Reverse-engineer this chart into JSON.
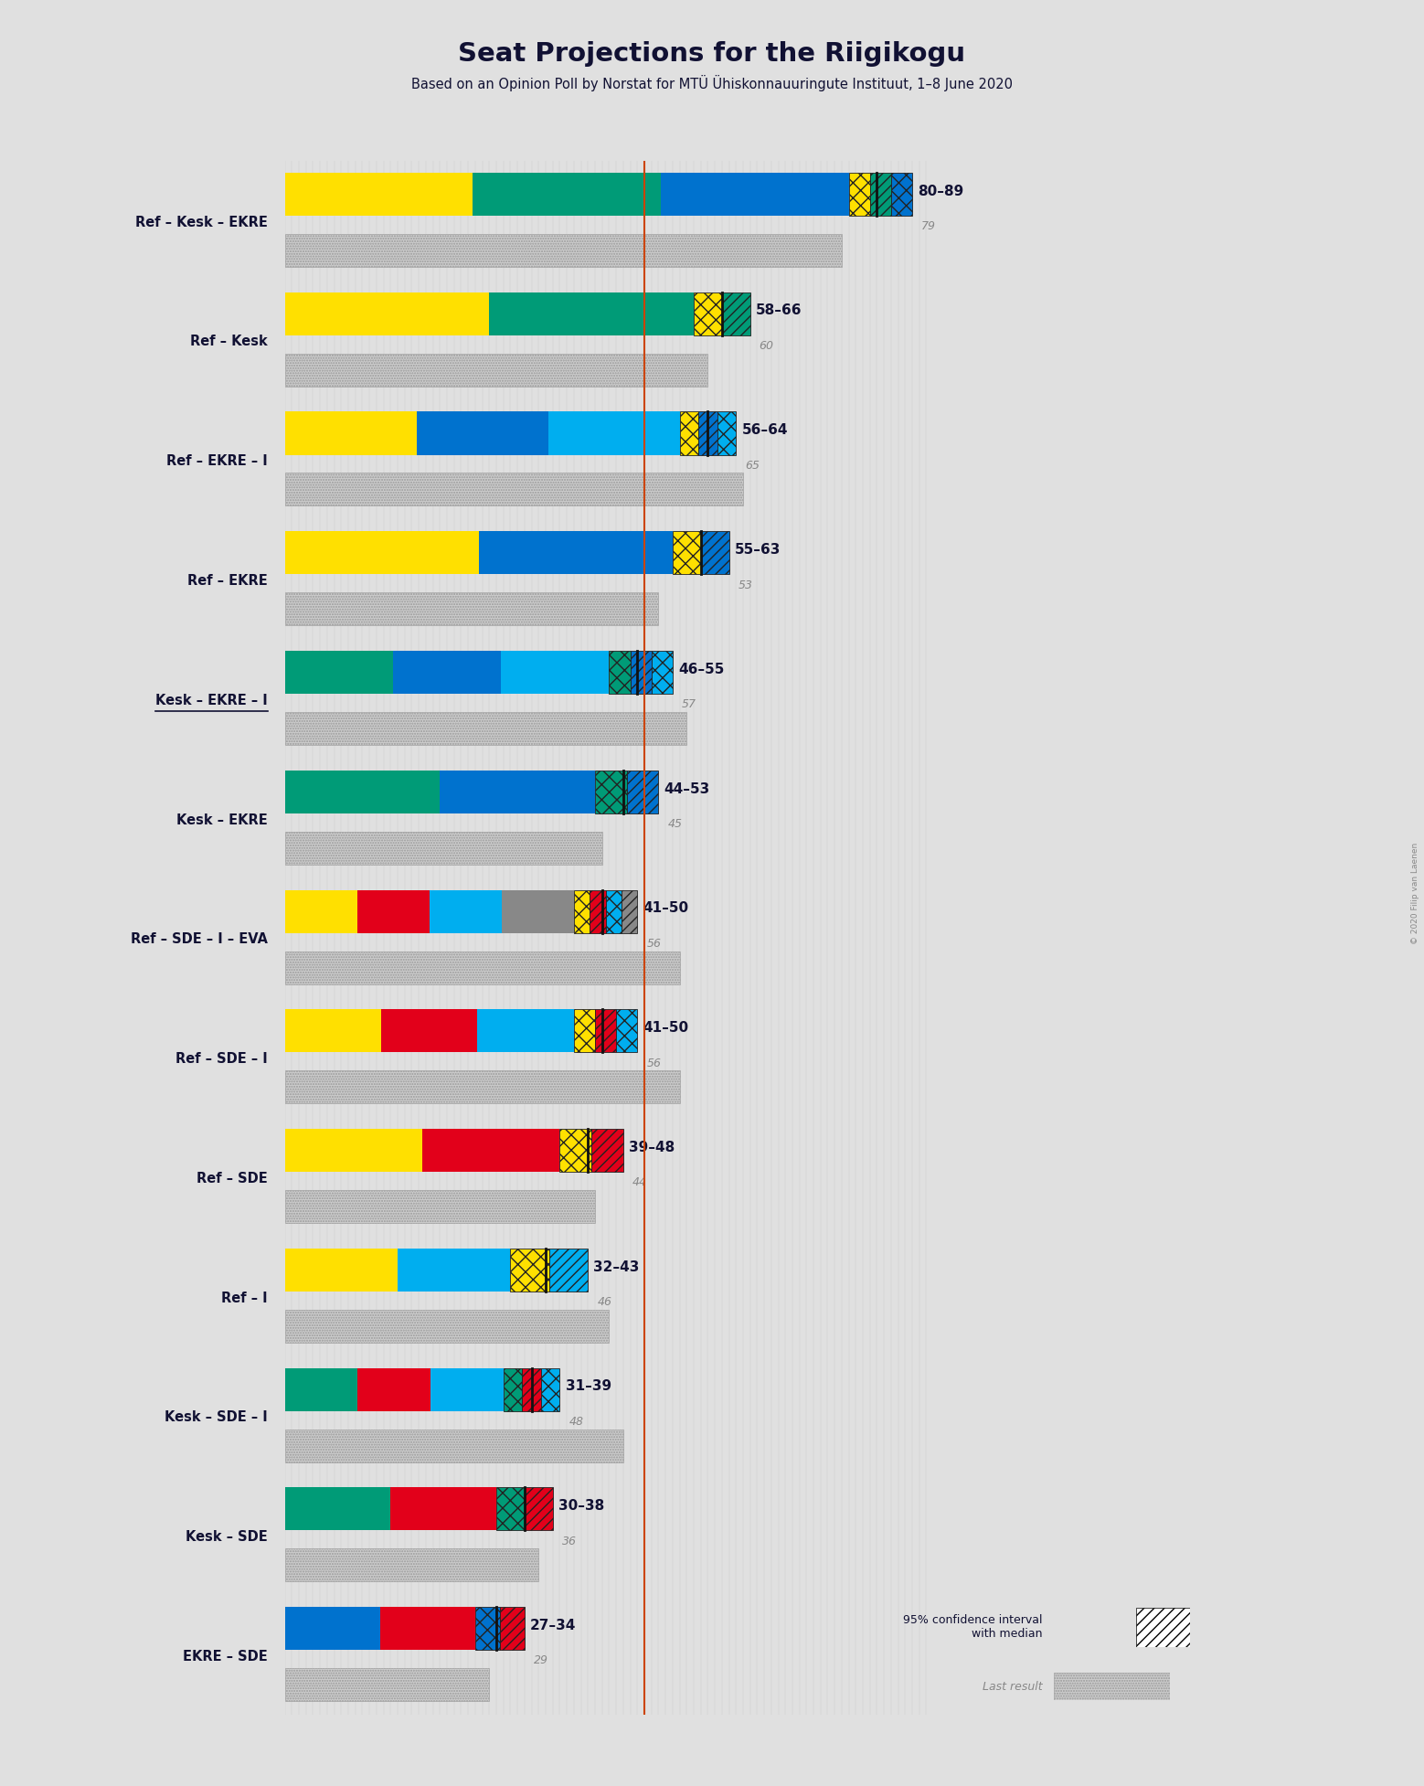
{
  "title": "Seat Projections for the Riigikogu",
  "subtitle": "Based on an Opinion Poll by Norstat for MTÜ Ühiskonnauuringute Instituut, 1–8 June 2020",
  "bg_color": "#e0e0e0",
  "majority_line": 51,
  "majority_line_color": "#cc4400",
  "coalitions": [
    {
      "label": "Ref – Kesk – EKRE",
      "underline": false,
      "ci_low": 80,
      "ci_high": 89,
      "median": 84,
      "last_result": 79,
      "colors": [
        "#FFE000",
        "#009B77",
        "#0072CE"
      ],
      "range_label": "80–89",
      "median_label": "79"
    },
    {
      "label": "Ref – Kesk",
      "underline": false,
      "ci_low": 58,
      "ci_high": 66,
      "median": 62,
      "last_result": 60,
      "colors": [
        "#FFE000",
        "#009B77"
      ],
      "range_label": "58–66",
      "median_label": "60"
    },
    {
      "label": "Ref – EKRE – I",
      "underline": false,
      "ci_low": 56,
      "ci_high": 64,
      "median": 60,
      "last_result": 65,
      "colors": [
        "#FFE000",
        "#0072CE",
        "#00AEEF"
      ],
      "range_label": "56–64",
      "median_label": "65"
    },
    {
      "label": "Ref – EKRE",
      "underline": false,
      "ci_low": 55,
      "ci_high": 63,
      "median": 59,
      "last_result": 53,
      "colors": [
        "#FFE000",
        "#0072CE"
      ],
      "range_label": "55–63",
      "median_label": "53"
    },
    {
      "label": "Kesk – EKRE – I",
      "underline": true,
      "ci_low": 46,
      "ci_high": 55,
      "median": 50,
      "last_result": 57,
      "colors": [
        "#009B77",
        "#0072CE",
        "#00AEEF"
      ],
      "range_label": "46–55",
      "median_label": "57"
    },
    {
      "label": "Kesk – EKRE",
      "underline": false,
      "ci_low": 44,
      "ci_high": 53,
      "median": 48,
      "last_result": 45,
      "colors": [
        "#009B77",
        "#0072CE"
      ],
      "range_label": "44–53",
      "median_label": "45"
    },
    {
      "label": "Ref – SDE – I – EVA",
      "underline": false,
      "ci_low": 41,
      "ci_high": 50,
      "median": 45,
      "last_result": 56,
      "colors": [
        "#FFE000",
        "#E2001A",
        "#00AEEF",
        "#888888"
      ],
      "range_label": "41–50",
      "median_label": "56"
    },
    {
      "label": "Ref – SDE – I",
      "underline": false,
      "ci_low": 41,
      "ci_high": 50,
      "median": 45,
      "last_result": 56,
      "colors": [
        "#FFE000",
        "#E2001A",
        "#00AEEF"
      ],
      "range_label": "41–50",
      "median_label": "56"
    },
    {
      "label": "Ref – SDE",
      "underline": false,
      "ci_low": 39,
      "ci_high": 48,
      "median": 43,
      "last_result": 44,
      "colors": [
        "#FFE000",
        "#E2001A"
      ],
      "range_label": "39–48",
      "median_label": "44"
    },
    {
      "label": "Ref – I",
      "underline": false,
      "ci_low": 32,
      "ci_high": 43,
      "median": 37,
      "last_result": 46,
      "colors": [
        "#FFE000",
        "#00AEEF"
      ],
      "range_label": "32–43",
      "median_label": "46"
    },
    {
      "label": "Kesk – SDE – I",
      "underline": false,
      "ci_low": 31,
      "ci_high": 39,
      "median": 35,
      "last_result": 48,
      "colors": [
        "#009B77",
        "#E2001A",
        "#00AEEF"
      ],
      "range_label": "31–39",
      "median_label": "48"
    },
    {
      "label": "Kesk – SDE",
      "underline": false,
      "ci_low": 30,
      "ci_high": 38,
      "median": 34,
      "last_result": 36,
      "colors": [
        "#009B77",
        "#E2001A"
      ],
      "range_label": "30–38",
      "median_label": "36"
    },
    {
      "label": "EKRE – SDE",
      "underline": false,
      "ci_low": 27,
      "ci_high": 34,
      "median": 30,
      "last_result": 29,
      "colors": [
        "#0072CE",
        "#E2001A"
      ],
      "range_label": "27–34",
      "median_label": "29"
    }
  ]
}
